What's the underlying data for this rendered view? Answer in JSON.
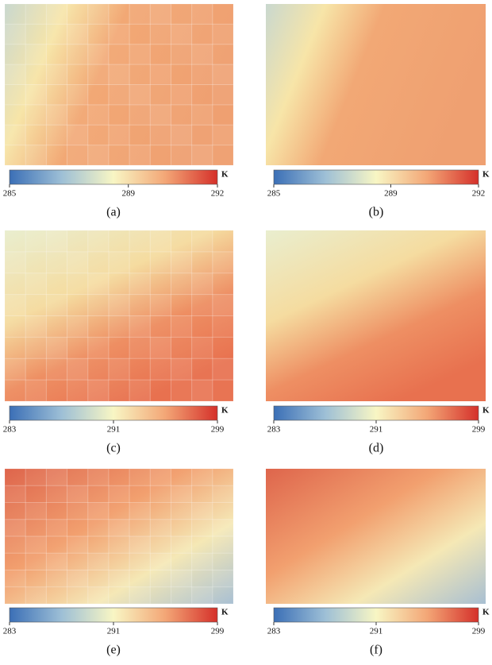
{
  "panels": [
    {
      "caption": "(a)",
      "colorbar": {
        "ticks": [
          285,
          289,
          292
        ],
        "unit": "K"
      }
    },
    {
      "caption": "(b)",
      "colorbar": {
        "ticks": [
          285,
          289,
          292
        ],
        "unit": "K"
      }
    },
    {
      "caption": "(c)",
      "colorbar": {
        "ticks": [
          283,
          291,
          299
        ],
        "unit": "K"
      }
    },
    {
      "caption": "(d)",
      "colorbar": {
        "ticks": [
          283,
          291,
          299
        ],
        "unit": "K"
      }
    },
    {
      "caption": "(e)",
      "colorbar": {
        "ticks": [
          283,
          291,
          299
        ],
        "unit": "K"
      }
    },
    {
      "caption": "(f)",
      "colorbar": {
        "ticks": [
          283,
          291,
          299
        ],
        "unit": "K"
      }
    }
  ]
}
